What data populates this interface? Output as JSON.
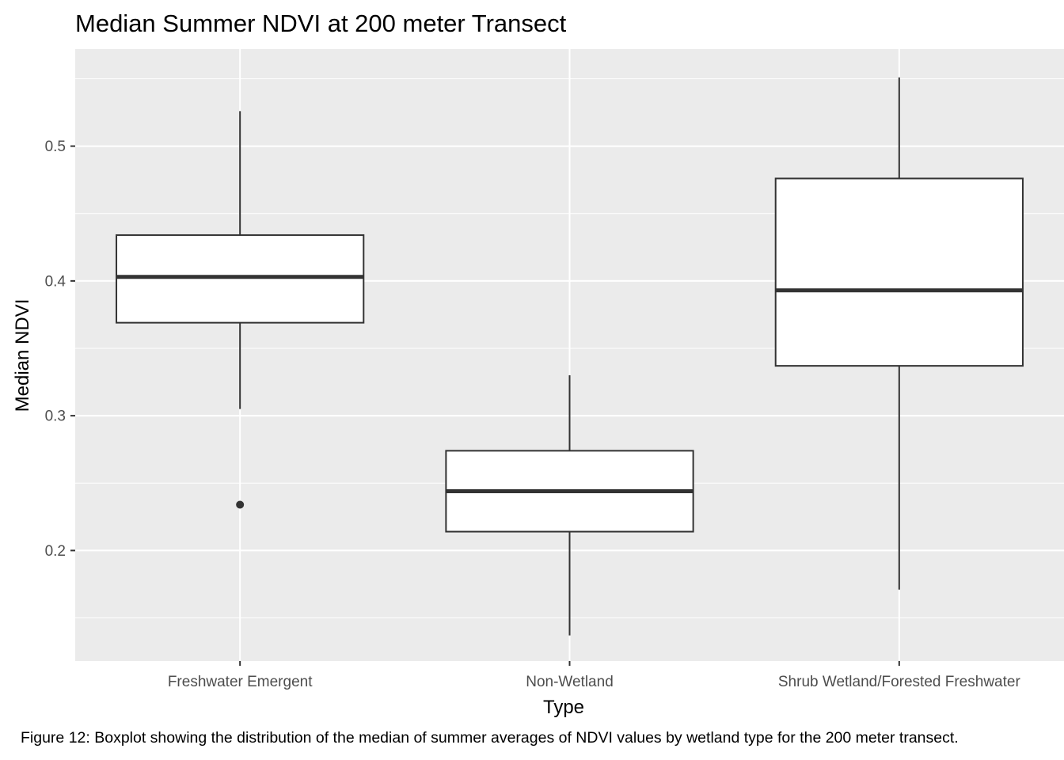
{
  "chart_data": {
    "type": "boxplot",
    "title": "Median Summer NDVI at 200 meter Transect",
    "xlabel": "Type",
    "ylabel": "Median NDVI",
    "categories": [
      "Freshwater Emergent",
      "Non-Wetland",
      "Shrub Wetland/Forested Freshwater"
    ],
    "boxes": [
      {
        "category": "Freshwater Emergent",
        "whisker_low": 0.305,
        "q1": 0.369,
        "median": 0.403,
        "q3": 0.434,
        "whisker_high": 0.526,
        "outliers": [
          0.234
        ]
      },
      {
        "category": "Non-Wetland",
        "whisker_low": 0.137,
        "q1": 0.214,
        "median": 0.244,
        "q3": 0.274,
        "whisker_high": 0.33,
        "outliers": []
      },
      {
        "category": "Shrub Wetland/Forested Freshwater",
        "whisker_low": 0.171,
        "q1": 0.337,
        "median": 0.393,
        "q3": 0.476,
        "whisker_high": 0.551,
        "outliers": []
      }
    ],
    "ylim": [
      0.118,
      0.572
    ],
    "y_ticks": [
      0.2,
      0.3,
      0.4,
      0.5
    ],
    "y_tick_labels": [
      "0.2",
      "0.3",
      "0.4",
      "0.5"
    ],
    "y_minor_ticks": [
      0.15,
      0.25,
      0.35,
      0.45,
      0.55
    ],
    "grid": true,
    "colors": {
      "panel": "#ebebeb",
      "grid": "#ffffff",
      "box_fill": "#ffffff",
      "stroke": "#333333"
    }
  },
  "caption": "Figure 12: Boxplot showing the distribution of the median of summer averages of NDVI values by wetland type for the 200 meter transect."
}
